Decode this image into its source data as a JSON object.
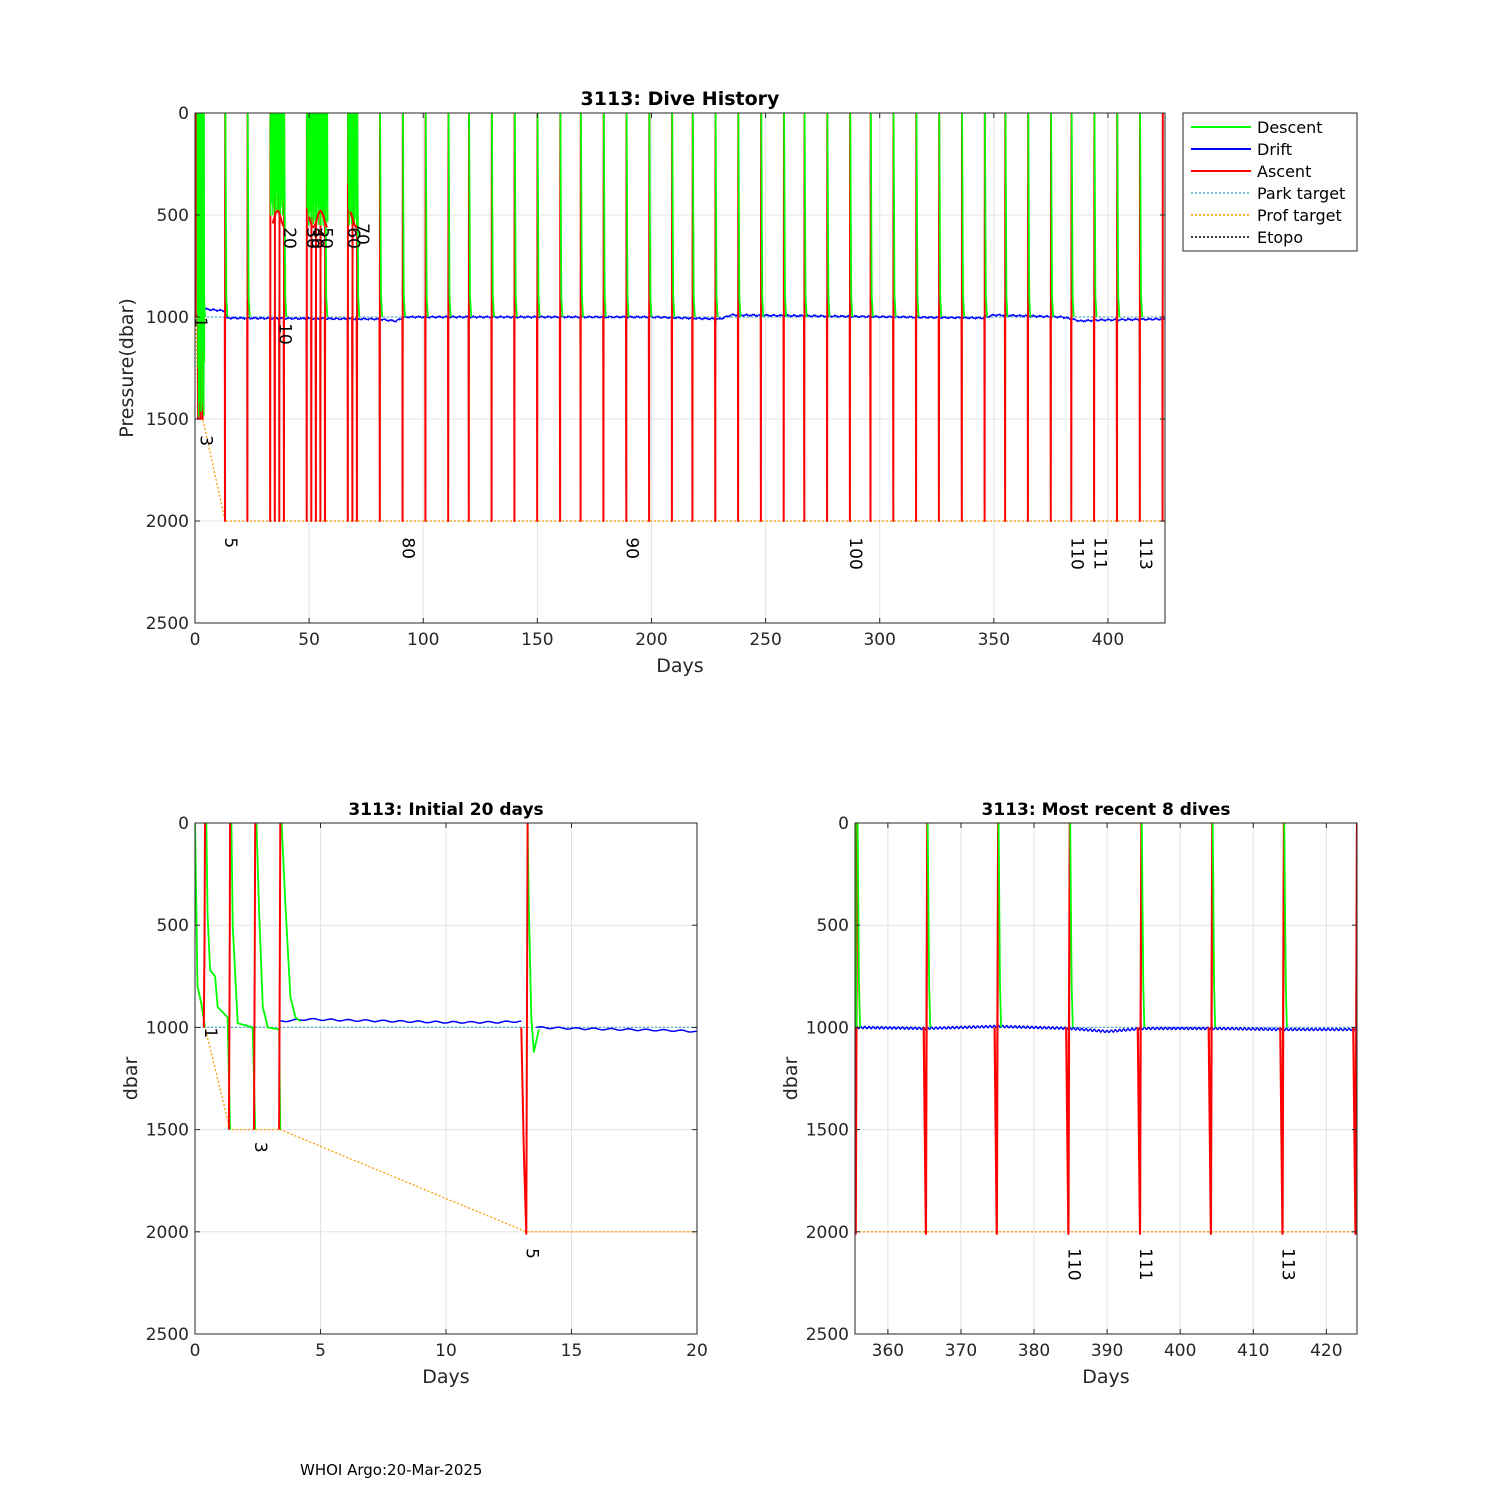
{
  "footer": "WHOI Argo:20-Mar-2025",
  "legend": [
    {
      "label": "Descent",
      "color": "#00ff00",
      "style": "solid"
    },
    {
      "label": "Drift",
      "color": "#0000ff",
      "style": "solid"
    },
    {
      "label": "Ascent",
      "color": "#ff0000",
      "style": "solid"
    },
    {
      "label": "Park target",
      "color": "#4db3d9",
      "style": "dotted"
    },
    {
      "label": "Prof target",
      "color": "#ff9900",
      "style": "dotted"
    },
    {
      "label": "Etopo",
      "color": "#000000",
      "style": "dotted"
    }
  ],
  "chart_data": [
    {
      "type": "line",
      "title": "3113: Dive History",
      "xlabel": "Days",
      "ylabel": "Pressure(dbar)",
      "xlim": [
        0,
        425
      ],
      "ylim": [
        0,
        2500
      ],
      "y_reversed": true,
      "grid": true,
      "legend_position": "outside-right",
      "xticks": [
        0,
        50,
        100,
        150,
        200,
        250,
        300,
        350,
        400
      ],
      "yticks": [
        0,
        500,
        1000,
        1500,
        2000,
        2500
      ],
      "profile_days": [
        0.4,
        1.4,
        2.4,
        3.4,
        13.2,
        23,
        33,
        35,
        37,
        39,
        49,
        51,
        53,
        55,
        57,
        67,
        69,
        71,
        81,
        91,
        101,
        111,
        120,
        130,
        140,
        150,
        160,
        169,
        179,
        189,
        199,
        209,
        218,
        228,
        238,
        248,
        258,
        267,
        277,
        287,
        296,
        306,
        316,
        326,
        336,
        346,
        355,
        365,
        375,
        384,
        394,
        404,
        414,
        424
      ],
      "drift_level": [
        [
          0,
          1000
        ],
        [
          3,
          960
        ],
        [
          13,
          970
        ],
        [
          14,
          1005
        ],
        [
          80,
          1010
        ],
        [
          88,
          1020
        ],
        [
          92,
          1000
        ],
        [
          200,
          1000
        ],
        [
          230,
          1010
        ],
        [
          235,
          990
        ],
        [
          345,
          1005
        ],
        [
          350,
          990
        ],
        [
          380,
          1000
        ],
        [
          388,
          1020
        ],
        [
          395,
          1015
        ],
        [
          425,
          1010
        ]
      ],
      "park_target": [
        [
          0,
          1000
        ],
        [
          425,
          1000
        ]
      ],
      "prof_target": [
        [
          0.4,
          1000
        ],
        [
          1.4,
          1500
        ],
        [
          3.4,
          1500
        ],
        [
          13.2,
          2000
        ],
        [
          425,
          2000
        ]
      ],
      "dive_labels": [
        {
          "text": "1",
          "day": 0,
          "depth": 1000
        },
        {
          "text": "3",
          "day": 2.4,
          "depth": 1580
        },
        {
          "text": "5",
          "day": 13.2,
          "depth": 2080
        },
        {
          "text": "10",
          "day": 37,
          "depth": 1030
        },
        {
          "text": "20",
          "day": 39,
          "depth": 560
        },
        {
          "text": "30",
          "day": 49,
          "depth": 560
        },
        {
          "text": "40",
          "day": 51,
          "depth": 560
        },
        {
          "text": "50",
          "day": 55,
          "depth": 560
        },
        {
          "text": "60",
          "day": 67,
          "depth": 560
        },
        {
          "text": "70",
          "day": 71,
          "depth": 540
        },
        {
          "text": "80",
          "day": 91,
          "depth": 2080
        },
        {
          "text": "90",
          "day": 189,
          "depth": 2080
        },
        {
          "text": "100",
          "day": 287,
          "depth": 2080
        },
        {
          "text": "110",
          "day": 384,
          "depth": 2080
        },
        {
          "text": "111",
          "day": 394,
          "depth": 2080
        },
        {
          "text": "113",
          "day": 414,
          "depth": 2080
        }
      ]
    },
    {
      "type": "line",
      "title": "3113: Initial 20 days",
      "xlabel": "Days",
      "ylabel": "dbar",
      "xlim": [
        0,
        20
      ],
      "ylim": [
        0,
        2500
      ],
      "y_reversed": true,
      "grid": true,
      "xticks": [
        0,
        5,
        10,
        15,
        20
      ],
      "yticks": [
        0,
        500,
        1000,
        1500,
        2000,
        2500
      ],
      "descent": [
        [
          [
            0,
            0
          ],
          [
            0.05,
            400
          ],
          [
            0.1,
            800
          ],
          [
            0.25,
            880
          ],
          [
            0.4,
            1000
          ]
        ],
        [
          [
            0.45,
            0
          ],
          [
            0.5,
            450
          ],
          [
            0.6,
            720
          ],
          [
            0.8,
            750
          ],
          [
            0.9,
            900
          ],
          [
            1.3,
            950
          ],
          [
            1.4,
            1500
          ]
        ],
        [
          [
            1.45,
            0
          ],
          [
            1.5,
            500
          ],
          [
            1.7,
            980
          ],
          [
            2.3,
            1000
          ],
          [
            2.4,
            1500
          ]
        ],
        [
          [
            2.45,
            0
          ],
          [
            2.55,
            420
          ],
          [
            2.7,
            900
          ],
          [
            2.9,
            1000
          ],
          [
            3.35,
            1010
          ],
          [
            3.4,
            1500
          ]
        ],
        [
          [
            3.45,
            0
          ],
          [
            3.6,
            400
          ],
          [
            3.8,
            850
          ],
          [
            4,
            950
          ],
          [
            4.2,
            970
          ]
        ],
        [
          [
            13.25,
            0
          ],
          [
            13.3,
            400
          ],
          [
            13.4,
            950
          ],
          [
            13.5,
            1120
          ],
          [
            13.7,
            1010
          ]
        ]
      ],
      "ascent": [
        [
          [
            0.35,
            1000
          ],
          [
            0.38,
            600
          ],
          [
            0.4,
            0
          ]
        ],
        [
          [
            1.35,
            1500
          ],
          [
            1.38,
            800
          ],
          [
            1.4,
            0
          ]
        ],
        [
          [
            2.35,
            1500
          ],
          [
            2.38,
            700
          ],
          [
            2.4,
            0
          ]
        ],
        [
          [
            3.35,
            1500
          ],
          [
            3.38,
            700
          ],
          [
            3.4,
            0
          ]
        ],
        [
          [
            13.0,
            1000
          ],
          [
            13.1,
            1600
          ],
          [
            13.2,
            2010
          ],
          [
            13.22,
            1200
          ],
          [
            13.25,
            0
          ]
        ]
      ],
      "drift": [
        [
          [
            2.0,
            990
          ],
          [
            2.4,
            1000
          ]
        ],
        [
          [
            3.4,
            970
          ],
          [
            4.5,
            960
          ],
          [
            6,
            965
          ],
          [
            8,
            970
          ],
          [
            10,
            975
          ],
          [
            12,
            975
          ],
          [
            13,
            970
          ]
        ],
        [
          [
            13.6,
            1000
          ],
          [
            15,
            1005
          ],
          [
            17,
            1010
          ],
          [
            19,
            1015
          ],
          [
            20,
            1020
          ]
        ]
      ],
      "park_target": [
        [
          0,
          1000
        ],
        [
          20,
          1000
        ]
      ],
      "prof_target": [
        [
          0,
          0
        ],
        [
          0.1,
          800
        ],
        [
          0.4,
          1000
        ],
        [
          1.4,
          1500
        ],
        [
          3.4,
          1500
        ],
        [
          13.2,
          2000
        ],
        [
          20,
          2000
        ]
      ],
      "dive_labels": [
        {
          "text": "1",
          "day": 0.4,
          "depth": 1000
        },
        {
          "text": "3",
          "day": 2.4,
          "depth": 1560
        },
        {
          "text": "5",
          "day": 13.2,
          "depth": 2080
        }
      ]
    },
    {
      "type": "line",
      "title": "3113: Most recent 8 dives",
      "xlabel": "Days",
      "ylabel": "dbar",
      "xlim": [
        355.5,
        424.2
      ],
      "ylim": [
        0,
        2500
      ],
      "y_reversed": true,
      "grid": true,
      "xticks": [
        360,
        370,
        380,
        390,
        400,
        410,
        420
      ],
      "yticks": [
        0,
        500,
        1000,
        1500,
        2000,
        2500
      ],
      "profile_days": [
        355.6,
        365.2,
        374.9,
        384.7,
        394.5,
        404.2,
        414.0,
        424.0
      ],
      "drift": [
        [
          355.6,
          1000
        ],
        [
          365,
          1005
        ],
        [
          375,
          995
        ],
        [
          385,
          1005
        ],
        [
          390,
          1020
        ],
        [
          395,
          1005
        ],
        [
          405,
          1005
        ],
        [
          414,
          1010
        ],
        [
          424,
          1010
        ]
      ],
      "park_target": [
        [
          355.5,
          1000
        ],
        [
          424.2,
          1000
        ]
      ],
      "prof_target": [
        [
          355.5,
          2000
        ],
        [
          424.2,
          2000
        ]
      ],
      "dive_labels": [
        {
          "text": "110",
          "day": 384.7,
          "depth": 2080
        },
        {
          "text": "111",
          "day": 394.5,
          "depth": 2080
        },
        {
          "text": "113",
          "day": 414.0,
          "depth": 2080
        }
      ]
    }
  ]
}
